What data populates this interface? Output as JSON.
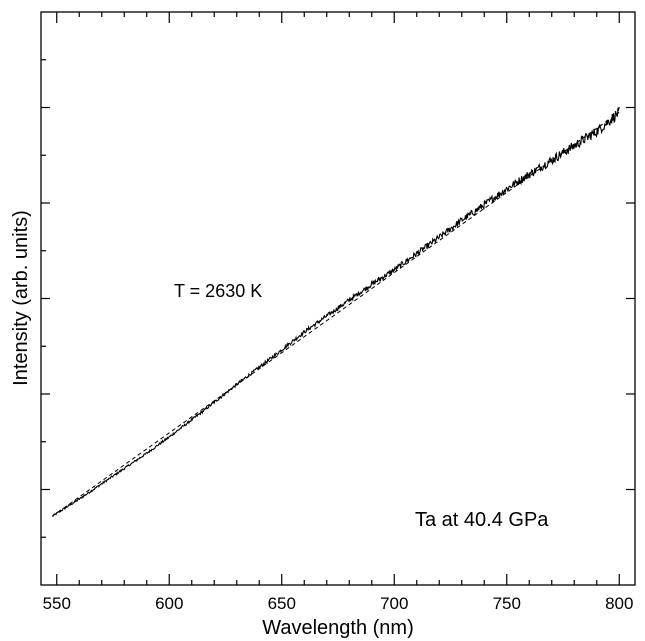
{
  "chart_data": {
    "type": "line",
    "xlabel": "Wavelength (nm)",
    "ylabel": "Intensity (arb. units)",
    "xlim": [
      543,
      807
    ],
    "ylim": [
      0,
      6
    ],
    "x_ticks": [
      550,
      600,
      650,
      700,
      750,
      800
    ],
    "y_ticks": [
      1,
      2,
      3,
      4,
      5
    ],
    "y_tick_labels_shown": false,
    "grid": false,
    "annotations": [
      "T = 2630 K",
      "Ta at 40.4 GPa"
    ],
    "series": [
      {
        "style": "solid",
        "x": [
          548,
          560,
          575,
          590,
          600,
          615,
          630,
          645,
          660,
          675,
          690,
          700,
          710,
          720,
          730,
          740,
          750,
          760,
          770,
          780,
          790,
          795,
          800
        ],
        "y": [
          0.72,
          0.9,
          1.14,
          1.38,
          1.55,
          1.82,
          2.1,
          2.37,
          2.65,
          2.9,
          3.15,
          3.3,
          3.47,
          3.64,
          3.82,
          3.98,
          4.15,
          4.3,
          4.45,
          4.6,
          4.75,
          4.85,
          4.95
        ],
        "noise": 0.06
      },
      {
        "style": "dashed",
        "x": [
          548,
          800
        ],
        "y": [
          0.72,
          4.95
        ]
      }
    ]
  }
}
